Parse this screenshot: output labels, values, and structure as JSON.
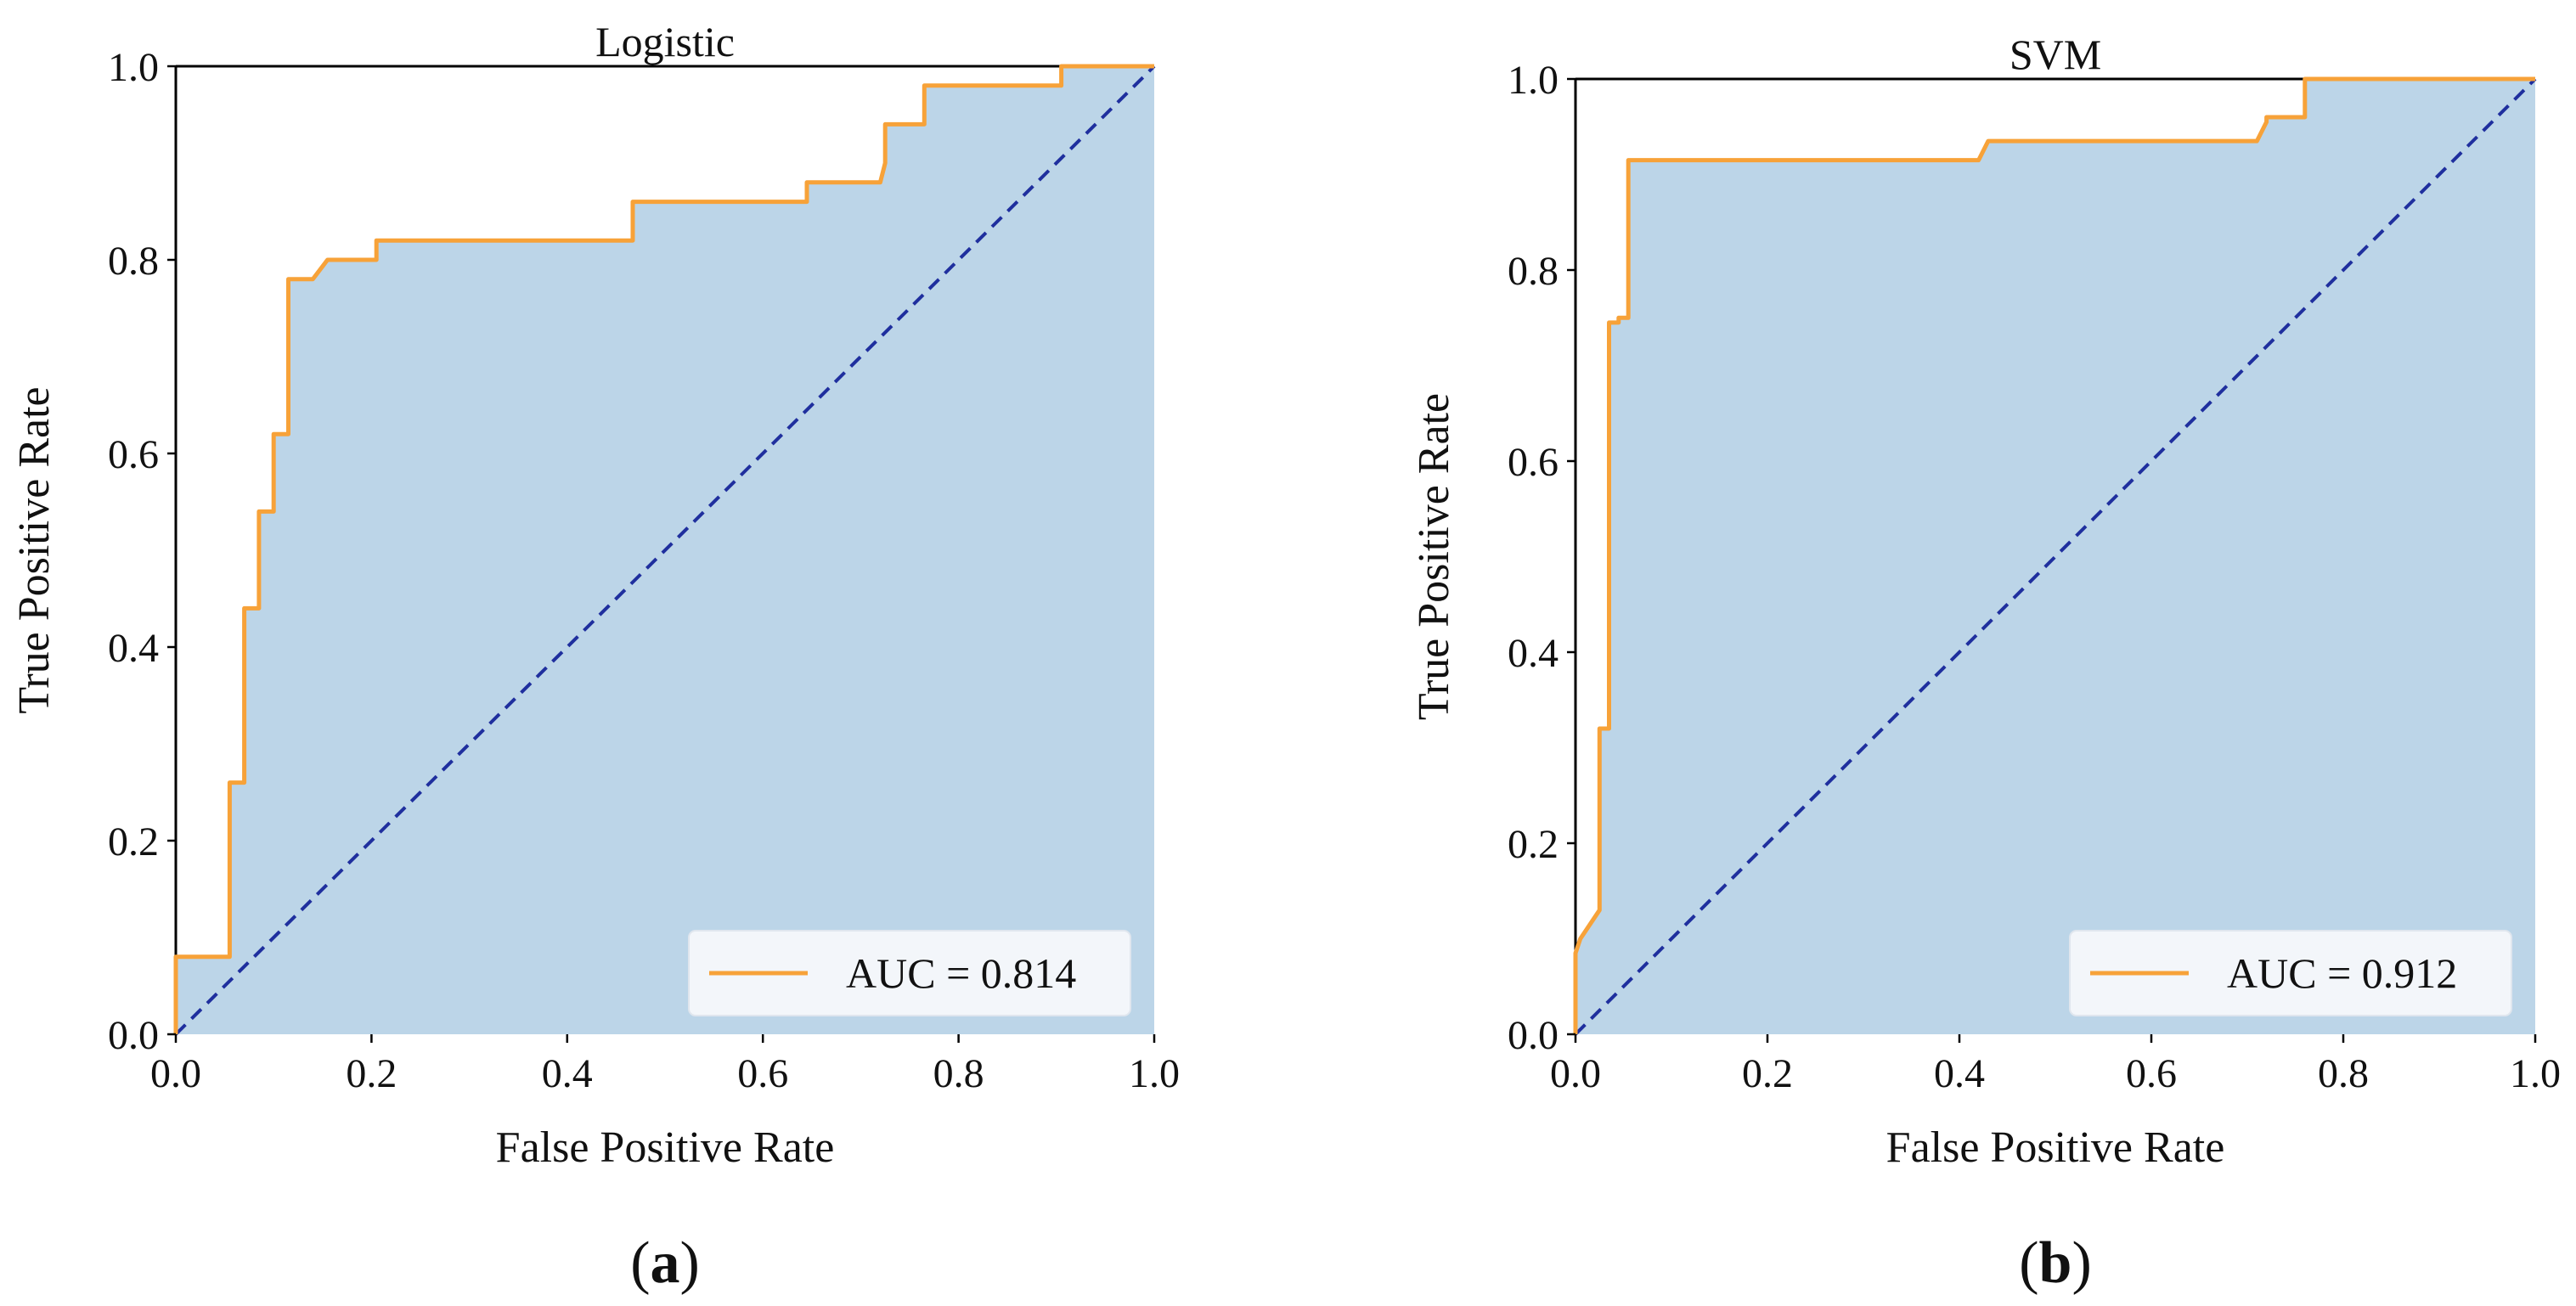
{
  "figure": {
    "background": "#ffffff",
    "fill_color": "#bcd5e8",
    "roc_color": "#f7a239",
    "diagonal_color": "#1f2f9e",
    "axis_color": "#000000",
    "legend_bg": "#f3f6fa"
  },
  "chart_data": [
    {
      "type": "line",
      "panel_label": {
        "open": "(",
        "letter": "a",
        "close": ")"
      },
      "title": "Logistic",
      "xlabel": "False Positive Rate",
      "ylabel": "True Positive Rate",
      "xlim": [
        0,
        1
      ],
      "ylim": [
        0,
        1
      ],
      "xticks": [
        "0.0",
        "0.2",
        "0.4",
        "0.6",
        "0.8",
        "1.0"
      ],
      "yticks": [
        "0.0",
        "0.2",
        "0.4",
        "0.6",
        "0.8",
        "1.0"
      ],
      "legend": {
        "label": "AUC = 0.814",
        "position": "lower-right"
      },
      "grid": false,
      "series": [
        {
          "name": "ROC",
          "x": [
            0.0,
            0.0,
            0.055,
            0.055,
            0.07,
            0.07,
            0.085,
            0.085,
            0.1,
            0.1,
            0.115,
            0.115,
            0.14,
            0.155,
            0.205,
            0.205,
            0.467,
            0.467,
            0.645,
            0.645,
            0.72,
            0.725,
            0.725,
            0.765,
            0.765,
            0.905,
            0.905,
            1.0
          ],
          "y": [
            0.0,
            0.08,
            0.08,
            0.26,
            0.26,
            0.44,
            0.44,
            0.54,
            0.54,
            0.62,
            0.62,
            0.78,
            0.78,
            0.8,
            0.8,
            0.82,
            0.82,
            0.86,
            0.86,
            0.88,
            0.88,
            0.9,
            0.94,
            0.94,
            0.98,
            0.98,
            1.0,
            1.0
          ]
        },
        {
          "name": "Chance",
          "x": [
            0,
            1
          ],
          "y": [
            0,
            1
          ],
          "style": "dashed"
        }
      ],
      "auc": 0.814
    },
    {
      "type": "line",
      "panel_label": {
        "open": "(",
        "letter": "b",
        "close": ")"
      },
      "title": "SVM",
      "xlabel": "False Positive Rate",
      "ylabel": "True Positive Rate",
      "xlim": [
        0,
        1
      ],
      "ylim": [
        0,
        1
      ],
      "xticks": [
        "0.0",
        "0.2",
        "0.4",
        "0.6",
        "0.8",
        "1.0"
      ],
      "yticks": [
        "0.0",
        "0.2",
        "0.4",
        "0.6",
        "0.8",
        "1.0"
      ],
      "legend": {
        "label": "AUC = 0.912",
        "position": "lower-right"
      },
      "grid": false,
      "series": [
        {
          "name": "ROC",
          "x": [
            0.0,
            0.0,
            0.005,
            0.025,
            0.025,
            0.035,
            0.035,
            0.045,
            0.045,
            0.055,
            0.055,
            0.42,
            0.43,
            0.71,
            0.72,
            0.72,
            0.76,
            0.76,
            1.0
          ],
          "y": [
            0.0,
            0.085,
            0.1,
            0.13,
            0.32,
            0.32,
            0.745,
            0.745,
            0.75,
            0.75,
            0.915,
            0.915,
            0.935,
            0.935,
            0.955,
            0.96,
            0.96,
            1.0,
            1.0
          ]
        },
        {
          "name": "Chance",
          "x": [
            0,
            1
          ],
          "y": [
            0,
            1
          ],
          "style": "dashed"
        }
      ],
      "auc": 0.912
    }
  ]
}
